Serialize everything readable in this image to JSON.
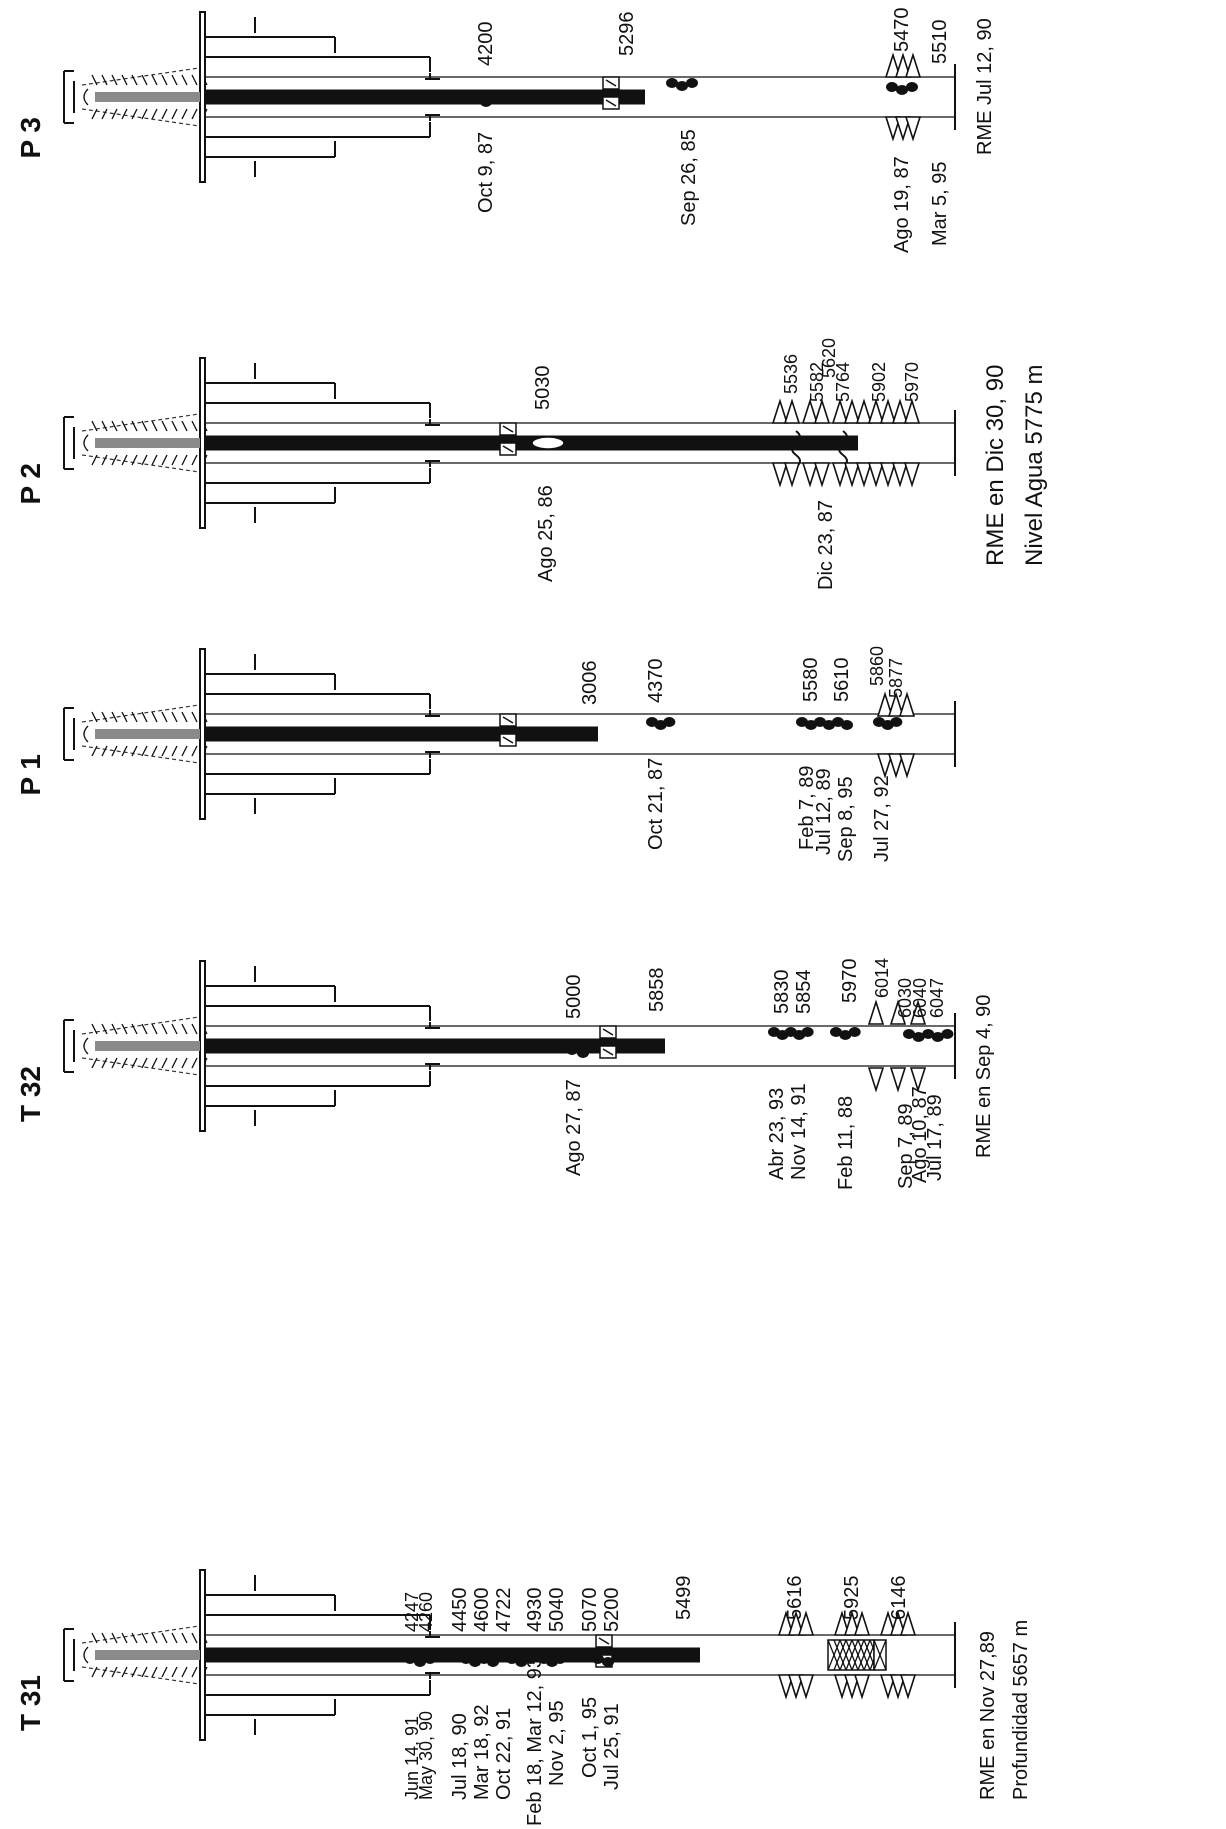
{
  "wells": [
    {
      "id": "p3",
      "name": "P 3",
      "depths": [
        "4200",
        "5296",
        "5470",
        "5510"
      ],
      "dates": [
        "Oct 9, 87",
        "Sep 26, 85",
        "Ago 19, 87",
        "Mar 5, 95"
      ],
      "note_lines": [
        "RME Jul 12, 90"
      ]
    },
    {
      "id": "p2",
      "name": "P 2",
      "depths": [
        "5030",
        "5536",
        "5582",
        "5620",
        "5764",
        "5902",
        "5970"
      ],
      "dates": [
        "Ago 25, 86",
        "Dic 23, 87"
      ],
      "note_lines": [
        "RME en Dic 30, 90",
        "Nivel Agua 5775 m"
      ]
    },
    {
      "id": "p1",
      "name": "P 1",
      "depths": [
        "3006",
        "4370",
        "5580",
        "5610",
        "5860",
        "5877"
      ],
      "dates": [
        "Oct 21, 87",
        "Feb 7, 89",
        "Jul 12, 89",
        "Sep 8, 95",
        "Jul 27, 92"
      ],
      "note_lines": []
    },
    {
      "id": "t32",
      "name": "T 32",
      "depths": [
        "5000",
        "5858",
        "5830",
        "5854",
        "5970",
        "6014",
        "6030",
        "6040",
        "6047"
      ],
      "dates": [
        "Ago 27, 87",
        "Abr 23, 93",
        "Nov 14, 91",
        "Feb 11, 88",
        "Sep 7, 89",
        "Ago 10, 87",
        "Jul 17, 89"
      ],
      "note_lines": [
        "RME en Sep 4, 90"
      ]
    },
    {
      "id": "t31",
      "name": "T 31",
      "depths": [
        "4247",
        "4260",
        "4450",
        "4600",
        "4722",
        "4930",
        "5040",
        "5070",
        "5200",
        "5499",
        "5616",
        "5925",
        "6146"
      ],
      "dates": [
        "Jun 14, 91",
        "May 30, 90",
        "Jul 18, 90",
        "Mar 18, 92",
        "Oct 22, 91",
        "Feb 18, Mar 12, 93",
        "Nov 2, 95",
        "Oct 1, 95",
        "Jul 25, 91"
      ],
      "note_lines": [
        "RME en Nov 27,89",
        "Profundidad 5657 m"
      ]
    }
  ]
}
